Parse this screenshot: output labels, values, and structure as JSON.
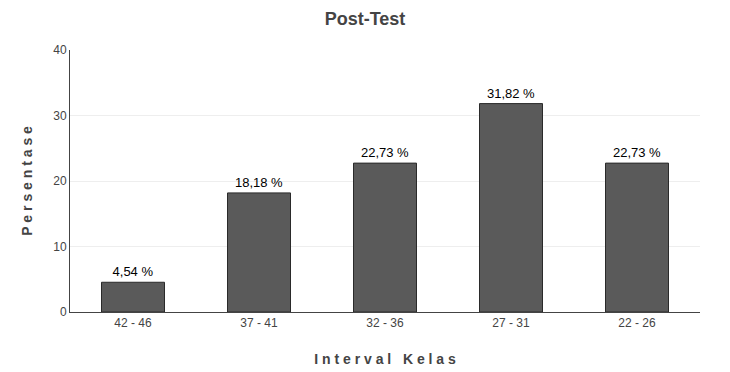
{
  "chart_data": {
    "type": "bar",
    "title": "Post-Test",
    "xlabel": "I n t e r v a l   K e l a s",
    "ylabel": "P e r s e n t a s e",
    "categories": [
      "42 - 46",
      "37 - 41",
      "32 - 36",
      "27 - 31",
      "22 - 26"
    ],
    "values": [
      4.54,
      18.18,
      22.73,
      31.82,
      22.73
    ],
    "value_labels": [
      "4,54 %",
      "18,18 %",
      "22,73 %",
      "31,82 %",
      "22,73 %"
    ],
    "data_labels": true,
    "color": "#5a5a5a",
    "ylim": [
      0,
      40
    ],
    "yticks": [
      0,
      10,
      20,
      30,
      40
    ],
    "grid": true
  }
}
